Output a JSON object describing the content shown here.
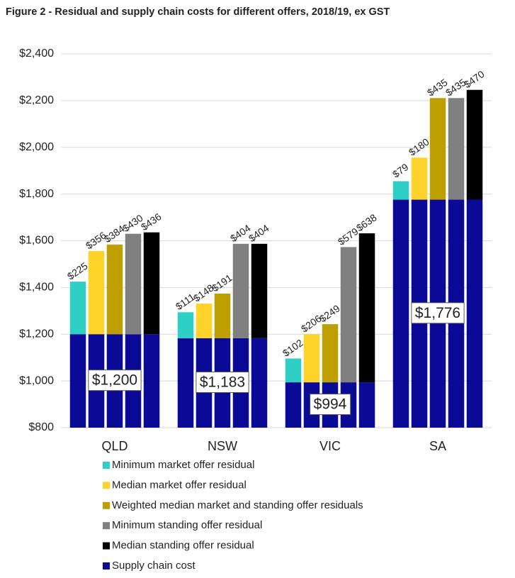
{
  "chart_data": {
    "type": "bar",
    "title": "Figure 2 - Residual and supply chain costs for different offers, 2018/19, ex GST",
    "categories": [
      "QLD",
      "NSW",
      "VIC",
      "SA"
    ],
    "series": [
      {
        "name": "Minimum market offer residual",
        "color": "#2ecfc4",
        "values": [
          225,
          111,
          102,
          79
        ],
        "value_labels": [
          "$225",
          "$111",
          "$102",
          "$79"
        ]
      },
      {
        "name": "Median market offer residual",
        "color": "#ffd42a",
        "values": [
          356,
          148,
          206,
          180
        ],
        "value_labels": [
          "$356",
          "$148",
          "$206",
          "$180"
        ]
      },
      {
        "name": "Weighted median market and standing offer residuals",
        "color": "#bf9f00",
        "values": [
          384,
          191,
          249,
          435
        ],
        "value_labels": [
          "$384",
          "$191",
          "$249",
          "$435"
        ]
      },
      {
        "name": "Minimum standing offer residual",
        "color": "#808080",
        "values": [
          430,
          404,
          579,
          435
        ],
        "value_labels": [
          "$430",
          "$404",
          "$579",
          "$435"
        ]
      },
      {
        "name": "Median standing offer residual",
        "color": "#000000",
        "values": [
          436,
          404,
          638,
          470
        ],
        "value_labels": [
          "$436",
          "$404",
          "$638",
          "$470"
        ]
      },
      {
        "name": "Supply chain cost",
        "color": "#0a0a96",
        "values": [
          1200,
          1183,
          994,
          1776
        ],
        "value_labels": [
          "$1,200",
          "$1,183",
          "$994",
          "$1,776"
        ]
      }
    ],
    "ylim": [
      800,
      2400
    ],
    "yticks": [
      {
        "value": 800,
        "label": "$800"
      },
      {
        "value": 1000,
        "label": "$1,000"
      },
      {
        "value": 1200,
        "label": "$1,200"
      },
      {
        "value": 1400,
        "label": "$1,400"
      },
      {
        "value": 1600,
        "label": "$1,600"
      },
      {
        "value": 1800,
        "label": "$1,800"
      },
      {
        "value": 2000,
        "label": "$2,000"
      },
      {
        "value": 2200,
        "label": "$2,200"
      },
      {
        "value": 2400,
        "label": "$2,400"
      }
    ],
    "grid": true
  }
}
